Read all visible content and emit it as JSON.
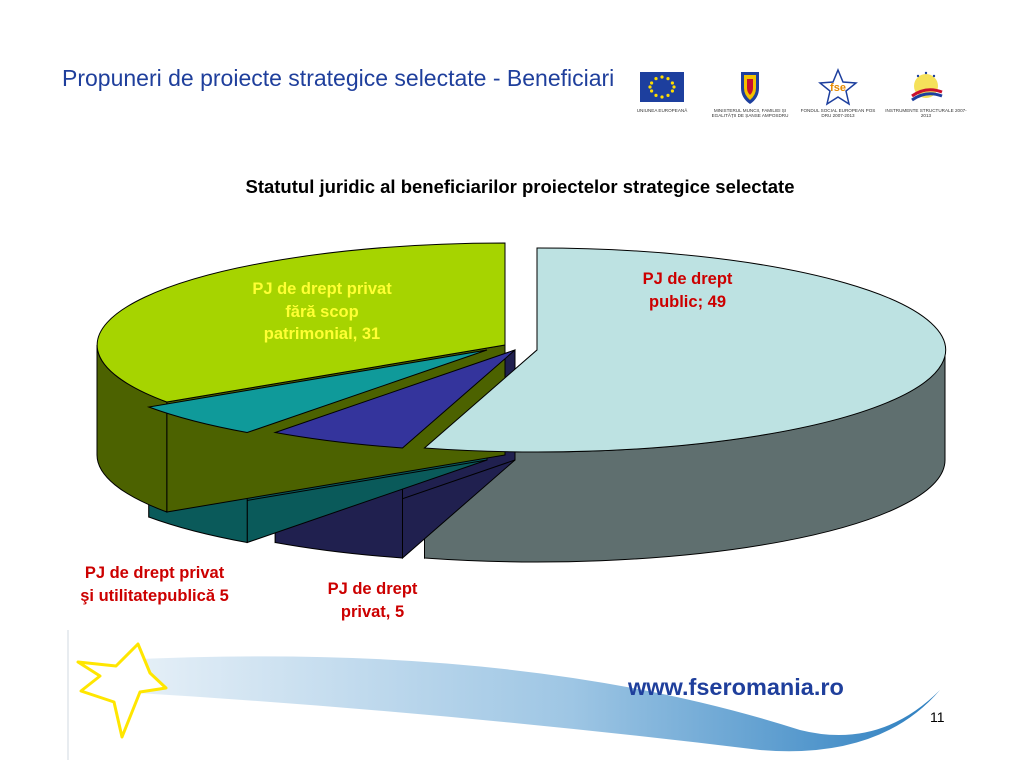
{
  "slide": {
    "title": "Propuneri de proiecte strategice selectate - Beneficiari",
    "page_number": "11",
    "url": "www.fseromania.ro"
  },
  "logos": [
    {
      "name": "eu-flag-logo",
      "caption": "UNIUNEA EUROPEANĂ"
    },
    {
      "name": "ministry-coat-of-arms-logo",
      "caption": "MINISTERUL MUNCII, FAMILIEI ȘI EGALITĂȚII DE ȘANSE AMPOSDRU"
    },
    {
      "name": "fse-logo",
      "caption": "FONDUL SOCIAL EUROPEAN POS DRU 2007-2013"
    },
    {
      "name": "structural-instruments-logo",
      "caption": "INSTRUMENTE STRUCTURALE 2007-2013"
    }
  ],
  "chart_data": {
    "type": "pie",
    "style": "3d-exploded",
    "title": "Statutul juridic al beneficiarilor proiectelor strategice selectate",
    "slices": [
      {
        "label": "PJ de drept public; 49",
        "value": 49,
        "color": "#bde2e2",
        "side_color": "#5f6f6f",
        "label_color": "#cc0000"
      },
      {
        "label": "PJ de drept privat, 5",
        "value": 5,
        "color": "#34349c",
        "side_color": "#20204f",
        "label_color": "#cc0000"
      },
      {
        "label": "PJ de drept privat şi utilitatepublică 5",
        "value": 5,
        "color": "#0f9a9a",
        "side_color": "#0a5a5a",
        "label_color": "#cc0000"
      },
      {
        "label": "PJ de drept privat fără scop patrimonial, 31",
        "value": 31,
        "color": "#a6d400",
        "side_color": "#4c6200",
        "label_color": "#ffff33"
      }
    ]
  },
  "labels": {
    "public": [
      "PJ de drept",
      "public; 49"
    ],
    "nonprofit": [
      "PJ de drept privat",
      "fără scop",
      "patrimonial, 31"
    ],
    "utility": [
      "PJ de drept privat",
      "şi utilitatepublică 5"
    ],
    "private": [
      "PJ de drept",
      "privat, 5"
    ]
  }
}
